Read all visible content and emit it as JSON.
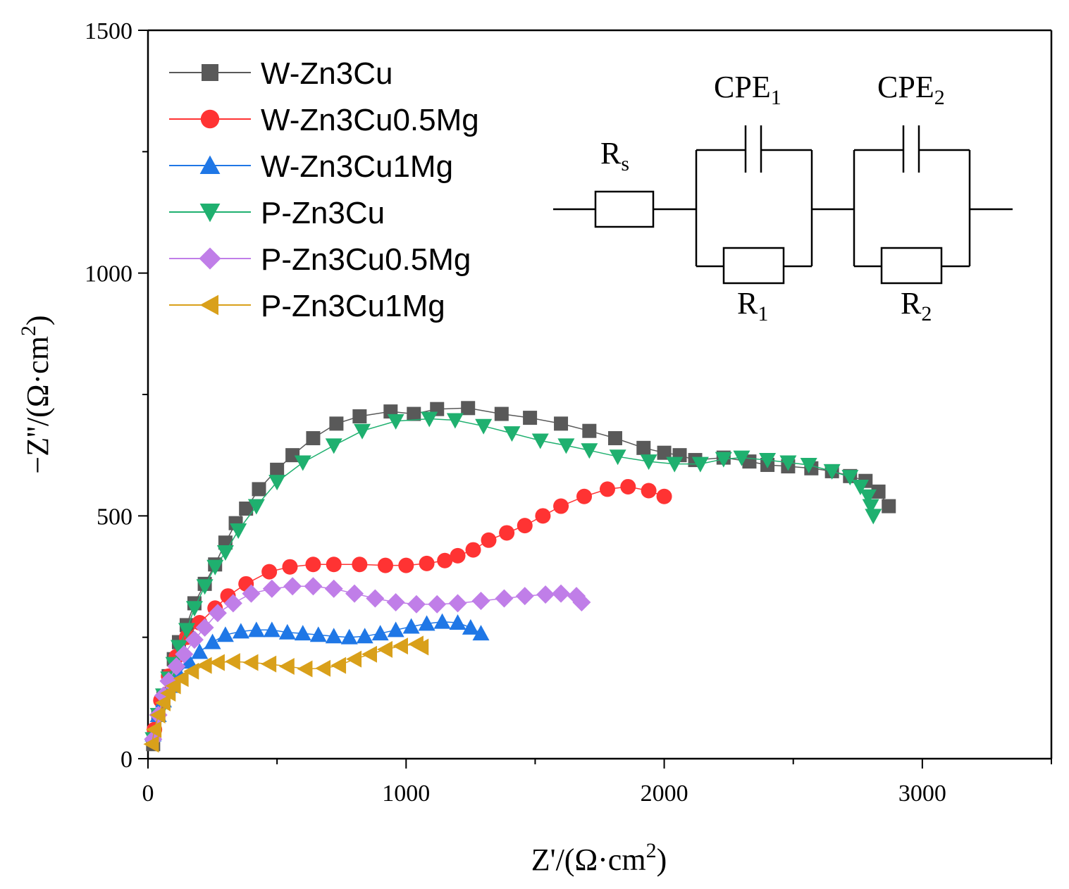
{
  "chart_data": {
    "type": "scatter",
    "title": "",
    "xlabel": "Z'/(Ω·cm²)",
    "ylabel": "−Z''/(Ω·cm²)",
    "xlabel_parts": {
      "main": "Z'/(Ω·cm",
      "sup": "2",
      "end": ")"
    },
    "ylabel_parts": {
      "main": "−Z''/(Ω·cm",
      "sup": "2",
      "end": ")"
    },
    "xlim": [
      0,
      3500
    ],
    "ylim": [
      0,
      1500
    ],
    "xticks": [
      0,
      1000,
      2000,
      3000
    ],
    "yticks": [
      0,
      500,
      1000,
      1500
    ],
    "grid": false,
    "legend_position": "top-left",
    "series": [
      {
        "name": "W-Zn3Cu",
        "color": "#595959",
        "marker": "square",
        "line": true,
        "points": [
          [
            20,
            30
          ],
          [
            40,
            90
          ],
          [
            60,
            130
          ],
          [
            80,
            170
          ],
          [
            100,
            205
          ],
          [
            120,
            240
          ],
          [
            150,
            275
          ],
          [
            180,
            320
          ],
          [
            220,
            360
          ],
          [
            260,
            400
          ],
          [
            300,
            445
          ],
          [
            340,
            485
          ],
          [
            380,
            515
          ],
          [
            430,
            555
          ],
          [
            500,
            595
          ],
          [
            560,
            625
          ],
          [
            640,
            660
          ],
          [
            730,
            690
          ],
          [
            820,
            705
          ],
          [
            940,
            715
          ],
          [
            1030,
            710
          ],
          [
            1120,
            720
          ],
          [
            1240,
            722
          ],
          [
            1370,
            710
          ],
          [
            1480,
            702
          ],
          [
            1600,
            690
          ],
          [
            1710,
            675
          ],
          [
            1810,
            660
          ],
          [
            1920,
            640
          ],
          [
            2000,
            630
          ],
          [
            2060,
            625
          ],
          [
            2120,
            615
          ],
          [
            2230,
            620
          ],
          [
            2330,
            612
          ],
          [
            2400,
            605
          ],
          [
            2480,
            602
          ],
          [
            2570,
            598
          ],
          [
            2650,
            592
          ],
          [
            2720,
            582
          ],
          [
            2780,
            572
          ],
          [
            2830,
            550
          ],
          [
            2870,
            520
          ]
        ]
      },
      {
        "name": "W-Zn3Cu0.5Mg",
        "color": "#ff3333",
        "marker": "circle",
        "line": true,
        "points": [
          [
            25,
            60
          ],
          [
            50,
            120
          ],
          [
            80,
            170
          ],
          [
            110,
            210
          ],
          [
            150,
            250
          ],
          [
            200,
            280
          ],
          [
            260,
            310
          ],
          [
            310,
            335
          ],
          [
            380,
            360
          ],
          [
            470,
            385
          ],
          [
            550,
            395
          ],
          [
            640,
            400
          ],
          [
            720,
            400
          ],
          [
            820,
            400
          ],
          [
            920,
            398
          ],
          [
            1000,
            398
          ],
          [
            1080,
            402
          ],
          [
            1150,
            408
          ],
          [
            1200,
            418
          ],
          [
            1260,
            430
          ],
          [
            1320,
            450
          ],
          [
            1390,
            465
          ],
          [
            1460,
            480
          ],
          [
            1530,
            500
          ],
          [
            1600,
            520
          ],
          [
            1690,
            540
          ],
          [
            1780,
            555
          ],
          [
            1860,
            560
          ],
          [
            1940,
            552
          ],
          [
            2000,
            540
          ]
        ]
      },
      {
        "name": "W-Zn3Cu1Mg",
        "color": "#1f77e6",
        "marker": "triangle-up",
        "line": true,
        "points": [
          [
            20,
            50
          ],
          [
            40,
            90
          ],
          [
            60,
            120
          ],
          [
            90,
            150
          ],
          [
            120,
            175
          ],
          [
            160,
            200
          ],
          [
            200,
            220
          ],
          [
            250,
            240
          ],
          [
            300,
            255
          ],
          [
            360,
            262
          ],
          [
            420,
            265
          ],
          [
            480,
            265
          ],
          [
            540,
            260
          ],
          [
            600,
            258
          ],
          [
            660,
            255
          ],
          [
            720,
            252
          ],
          [
            780,
            250
          ],
          [
            840,
            252
          ],
          [
            900,
            258
          ],
          [
            960,
            265
          ],
          [
            1020,
            272
          ],
          [
            1080,
            278
          ],
          [
            1140,
            282
          ],
          [
            1200,
            280
          ],
          [
            1250,
            270
          ],
          [
            1290,
            258
          ]
        ]
      },
      {
        "name": "P-Zn3Cu",
        "color": "#1fb06f",
        "marker": "triangle-down",
        "line": true,
        "points": [
          [
            20,
            40
          ],
          [
            40,
            90
          ],
          [
            60,
            130
          ],
          [
            80,
            165
          ],
          [
            100,
            195
          ],
          [
            120,
            230
          ],
          [
            150,
            265
          ],
          [
            180,
            310
          ],
          [
            220,
            355
          ],
          [
            260,
            395
          ],
          [
            300,
            425
          ],
          [
            350,
            470
          ],
          [
            420,
            520
          ],
          [
            500,
            570
          ],
          [
            600,
            610
          ],
          [
            720,
            645
          ],
          [
            830,
            675
          ],
          [
            960,
            695
          ],
          [
            1090,
            700
          ],
          [
            1190,
            697
          ],
          [
            1300,
            685
          ],
          [
            1410,
            670
          ],
          [
            1520,
            655
          ],
          [
            1620,
            645
          ],
          [
            1710,
            635
          ],
          [
            1820,
            622
          ],
          [
            1940,
            612
          ],
          [
            2040,
            607
          ],
          [
            2140,
            607
          ],
          [
            2230,
            617
          ],
          [
            2300,
            620
          ],
          [
            2400,
            615
          ],
          [
            2480,
            610
          ],
          [
            2560,
            605
          ],
          [
            2650,
            592
          ],
          [
            2720,
            580
          ],
          [
            2760,
            560
          ],
          [
            2790,
            540
          ],
          [
            2800,
            520
          ],
          [
            2810,
            500
          ]
        ]
      },
      {
        "name": "P-Zn3Cu0.5Mg",
        "color": "#c07ee8",
        "marker": "diamond",
        "line": true,
        "points": [
          [
            20,
            40
          ],
          [
            40,
            90
          ],
          [
            60,
            130
          ],
          [
            80,
            160
          ],
          [
            110,
            190
          ],
          [
            140,
            215
          ],
          [
            180,
            245
          ],
          [
            220,
            270
          ],
          [
            270,
            300
          ],
          [
            330,
            320
          ],
          [
            400,
            340
          ],
          [
            480,
            350
          ],
          [
            560,
            355
          ],
          [
            640,
            355
          ],
          [
            720,
            350
          ],
          [
            800,
            340
          ],
          [
            880,
            330
          ],
          [
            960,
            322
          ],
          [
            1040,
            318
          ],
          [
            1120,
            318
          ],
          [
            1200,
            320
          ],
          [
            1290,
            325
          ],
          [
            1380,
            330
          ],
          [
            1460,
            335
          ],
          [
            1540,
            338
          ],
          [
            1600,
            340
          ],
          [
            1660,
            335
          ],
          [
            1680,
            322
          ]
        ]
      },
      {
        "name": "P-Zn3Cu1Mg",
        "color": "#d9a01a",
        "marker": "triangle-left",
        "line": true,
        "points": [
          [
            15,
            30
          ],
          [
            25,
            60
          ],
          [
            40,
            90
          ],
          [
            60,
            115
          ],
          [
            80,
            135
          ],
          [
            100,
            150
          ],
          [
            130,
            165
          ],
          [
            170,
            180
          ],
          [
            220,
            192
          ],
          [
            270,
            198
          ],
          [
            330,
            200
          ],
          [
            400,
            198
          ],
          [
            470,
            195
          ],
          [
            540,
            190
          ],
          [
            610,
            185
          ],
          [
            680,
            186
          ],
          [
            740,
            192
          ],
          [
            800,
            205
          ],
          [
            860,
            215
          ],
          [
            920,
            225
          ],
          [
            980,
            232
          ],
          [
            1040,
            236
          ],
          [
            1060,
            230
          ]
        ]
      }
    ],
    "inset_circuit": {
      "elements": [
        "Rs",
        "CPE1",
        "R1",
        "CPE2",
        "R2"
      ],
      "labels": [
        {
          "main": "R",
          "sub": "s"
        },
        {
          "main": "CPE",
          "sub": "1"
        },
        {
          "main": "R",
          "sub": "1"
        },
        {
          "main": "CPE",
          "sub": "2"
        },
        {
          "main": "R",
          "sub": "2"
        }
      ]
    }
  }
}
